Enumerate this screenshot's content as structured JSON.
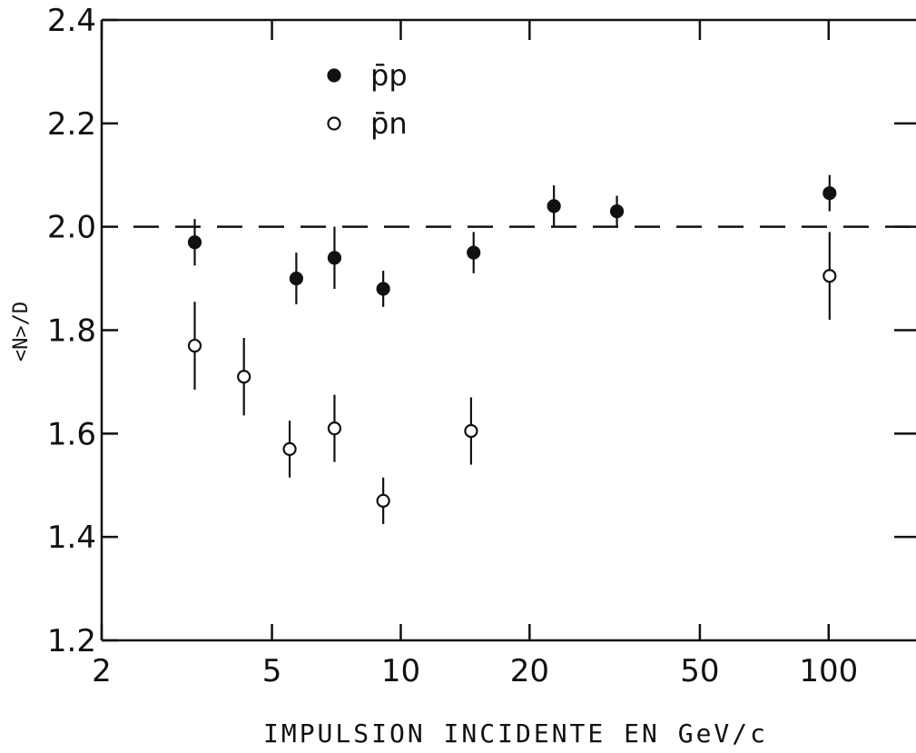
{
  "chart_data": {
    "type": "scatter",
    "title": "",
    "xlabel": "IMPULSION INCIDENTE EN GeV/c",
    "ylabel": "<N>/D",
    "xscale": "log",
    "xlim": [
      2,
      160
    ],
    "ylim": [
      1.2,
      2.4
    ],
    "x_ticks": [
      2,
      5,
      10,
      20,
      50,
      100
    ],
    "x_tick_labels": [
      "2",
      "5",
      "10",
      "20",
      "50",
      "100"
    ],
    "y_ticks": [
      1.2,
      1.4,
      1.6,
      1.8,
      2.0,
      2.2,
      2.4
    ],
    "y_tick_labels": [
      "1.2",
      "1.4",
      "1.6",
      "1.8",
      "2.0",
      "2.2",
      "2.4"
    ],
    "grid": false,
    "legend_position": "top-left",
    "reference_line": {
      "y": 2.0,
      "style": "dashed"
    },
    "series": [
      {
        "name": "p̄p",
        "marker": "filled-circle",
        "points": [
          {
            "x": 3.3,
            "y": 1.97,
            "err": 0.045
          },
          {
            "x": 5.7,
            "y": 1.9,
            "err": 0.05
          },
          {
            "x": 7.0,
            "y": 1.94,
            "err": 0.06
          },
          {
            "x": 9.1,
            "y": 1.88,
            "err": 0.035
          },
          {
            "x": 14.8,
            "y": 1.95,
            "err": 0.04
          },
          {
            "x": 22.8,
            "y": 2.04,
            "err": 0.04
          },
          {
            "x": 32.0,
            "y": 2.03,
            "err": 0.03
          },
          {
            "x": 100.5,
            "y": 2.065,
            "err": 0.035
          }
        ]
      },
      {
        "name": "p̄n",
        "marker": "open-circle",
        "points": [
          {
            "x": 3.3,
            "y": 1.77,
            "err": 0.085
          },
          {
            "x": 4.3,
            "y": 1.71,
            "err": 0.075
          },
          {
            "x": 5.5,
            "y": 1.57,
            "err": 0.055
          },
          {
            "x": 7.0,
            "y": 1.61,
            "err": 0.065
          },
          {
            "x": 9.1,
            "y": 1.47,
            "err": 0.045
          },
          {
            "x": 14.6,
            "y": 1.605,
            "err": 0.065
          },
          {
            "x": 100.5,
            "y": 1.905,
            "err": 0.085
          }
        ]
      }
    ]
  }
}
